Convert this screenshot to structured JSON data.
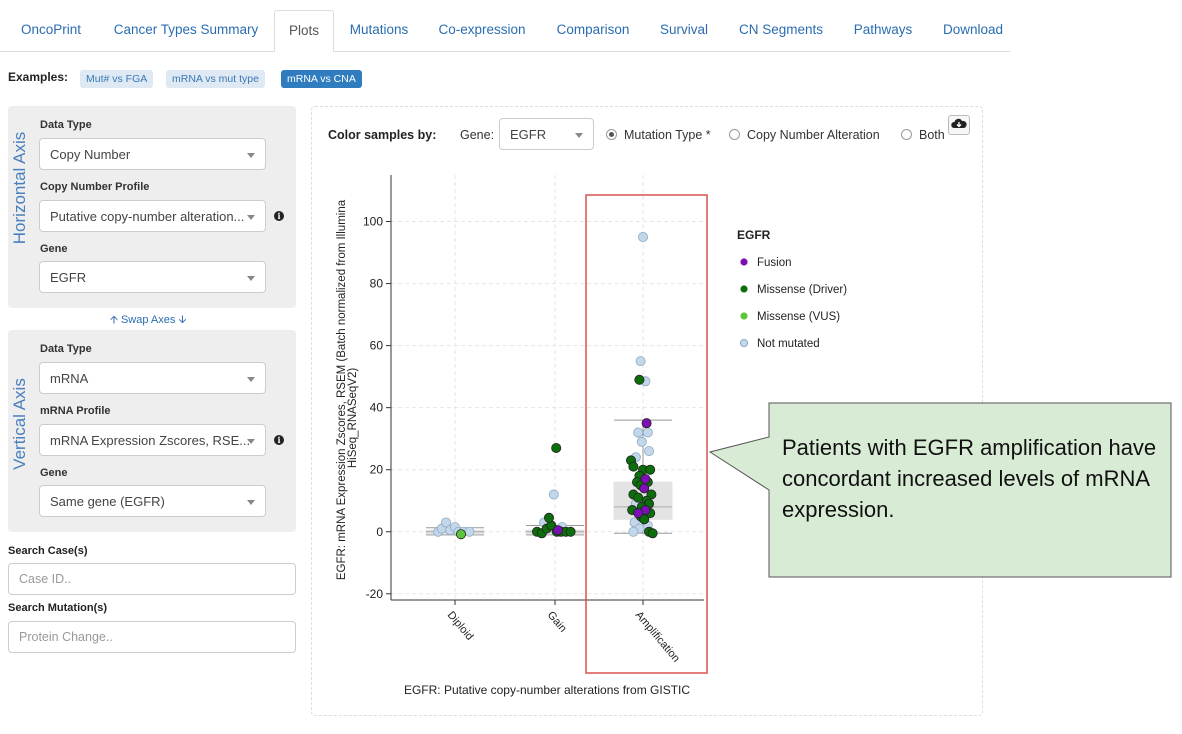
{
  "tabs": [
    {
      "label": "OncoPrint",
      "active": false
    },
    {
      "label": "Cancer Types Summary",
      "active": false
    },
    {
      "label": "Plots",
      "active": true
    },
    {
      "label": "Mutations",
      "active": false
    },
    {
      "label": "Co-expression",
      "active": false
    },
    {
      "label": "Comparison",
      "active": false
    },
    {
      "label": "Survival",
      "active": false
    },
    {
      "label": "CN Segments",
      "active": false
    },
    {
      "label": "Pathways",
      "active": false
    },
    {
      "label": "Download",
      "active": false
    }
  ],
  "examples": {
    "label": "Examples:",
    "items": [
      {
        "label": "Mut# vs FGA",
        "selected": false
      },
      {
        "label": "mRNA vs mut type",
        "selected": false
      },
      {
        "label": "mRNA vs CNA",
        "selected": true
      }
    ]
  },
  "horizontal": {
    "axis_label": "Horizontal Axis",
    "data_type_label": "Data Type",
    "data_type_value": "Copy Number",
    "profile_label": "Copy Number Profile",
    "profile_value": "Putative copy-number alteration...",
    "gene_label": "Gene",
    "gene_value": "EGFR"
  },
  "swap_axes": "Swap Axes",
  "vertical": {
    "axis_label": "Vertical Axis",
    "data_type_label": "Data Type",
    "data_type_value": "mRNA",
    "profile_label": "mRNA Profile",
    "profile_value": "mRNA Expression Zscores, RSE...",
    "gene_label": "Gene",
    "gene_value": "Same gene (EGFR)"
  },
  "search_case": {
    "label": "Search Case(s)",
    "placeholder": "Case ID.."
  },
  "search_mutation": {
    "label": "Search Mutation(s)",
    "placeholder": "Protein Change.."
  },
  "plot_controls": {
    "color_by_label": "Color samples by:",
    "gene_label": "Gene:",
    "gene_value": "EGFR",
    "options": [
      {
        "label": "Mutation Type *",
        "checked": true
      },
      {
        "label": "Copy Number Alteration",
        "checked": false
      },
      {
        "label": "Both",
        "checked": false
      }
    ]
  },
  "colors": {
    "fusion": "#7b0fb3",
    "missense_driver": "#0b6e0b",
    "missense_vus": "#5ec43a",
    "not_mutated": "#c2d8ea",
    "callout_fill": "#d8ebd4",
    "highlight_box": "#d9534f"
  },
  "callout_text": "Patients with EGFR amplification have concordant increased levels of mRNA expression.",
  "chart_data": {
    "type": "scatter",
    "xlabel": "EGFR: Putative copy-number alterations from GISTIC",
    "ylabel": "EGFR: mRNA Expression Zscores, RSEM (Batch normalized from Illumina HiSeq_RNASeqV2)",
    "categories": [
      "Diploid",
      "Gain",
      "Amplification"
    ],
    "ylim": [
      -22,
      115
    ],
    "yticks": [
      -20,
      0,
      20,
      40,
      60,
      80,
      100
    ],
    "grid": true,
    "legend": {
      "title": "EGFR",
      "placement": "right",
      "entries": [
        "Fusion",
        "Missense (Driver)",
        "Missense (VUS)",
        "Not mutated"
      ]
    },
    "boxes": [
      {
        "category": "Diploid",
        "min": -1,
        "q1": -0.5,
        "median": 0,
        "q3": 0.5,
        "max": 1.3
      },
      {
        "category": "Gain",
        "min": -1,
        "q1": -0.5,
        "median": 0,
        "q3": 0.5,
        "max": 2
      },
      {
        "category": "Amplification",
        "min": -0.5,
        "q1": 4,
        "median": 8,
        "q3": 16,
        "max": 36
      }
    ],
    "points": [
      {
        "cat": 0,
        "jitter": -0.28,
        "y": 0,
        "type": "not_mutated"
      },
      {
        "cat": 0,
        "jitter": -0.22,
        "y": 1,
        "type": "not_mutated"
      },
      {
        "cat": 0,
        "jitter": -0.15,
        "y": 3,
        "type": "not_mutated"
      },
      {
        "cat": 0,
        "jitter": -0.08,
        "y": 0.5,
        "type": "not_mutated"
      },
      {
        "cat": 0,
        "jitter": 0.0,
        "y": 1.5,
        "type": "not_mutated"
      },
      {
        "cat": 0,
        "jitter": 0.06,
        "y": 0,
        "type": "not_mutated"
      },
      {
        "cat": 0,
        "jitter": 0.14,
        "y": 0,
        "type": "not_mutated"
      },
      {
        "cat": 0,
        "jitter": 0.24,
        "y": 0,
        "type": "not_mutated"
      },
      {
        "cat": 0,
        "jitter": 0.1,
        "y": -0.8,
        "type": "missense_vus"
      },
      {
        "cat": 1,
        "jitter": -0.3,
        "y": 0,
        "type": "missense_driver"
      },
      {
        "cat": 1,
        "jitter": -0.22,
        "y": -0.5,
        "type": "missense_driver"
      },
      {
        "cat": 1,
        "jitter": -0.14,
        "y": 1,
        "type": "missense_driver"
      },
      {
        "cat": 1,
        "jitter": -0.06,
        "y": 2,
        "type": "missense_driver"
      },
      {
        "cat": 1,
        "jitter": 0.03,
        "y": 0,
        "type": "missense_driver"
      },
      {
        "cat": 1,
        "jitter": 0.1,
        "y": 0,
        "type": "missense_driver"
      },
      {
        "cat": 1,
        "jitter": 0.18,
        "y": 0,
        "type": "missense_driver"
      },
      {
        "cat": 1,
        "jitter": 0.26,
        "y": 0,
        "type": "missense_driver"
      },
      {
        "cat": 1,
        "jitter": -0.1,
        "y": 4.5,
        "type": "missense_driver"
      },
      {
        "cat": 1,
        "jitter": 0.02,
        "y": 27,
        "type": "missense_driver"
      },
      {
        "cat": 1,
        "jitter": -0.02,
        "y": 12,
        "type": "not_mutated"
      },
      {
        "cat": 1,
        "jitter": -0.18,
        "y": 3,
        "type": "not_mutated"
      },
      {
        "cat": 1,
        "jitter": 0.12,
        "y": 1.5,
        "type": "not_mutated"
      },
      {
        "cat": 1,
        "jitter": 0.05,
        "y": 0.5,
        "type": "fusion"
      },
      {
        "cat": 2,
        "jitter": 0.0,
        "y": 95,
        "type": "not_mutated"
      },
      {
        "cat": 2,
        "jitter": -0.04,
        "y": 55,
        "type": "not_mutated"
      },
      {
        "cat": 2,
        "jitter": 0.04,
        "y": 48.5,
        "type": "not_mutated"
      },
      {
        "cat": 2,
        "jitter": -0.06,
        "y": 49,
        "type": "missense_driver"
      },
      {
        "cat": 2,
        "jitter": 0.06,
        "y": 35,
        "type": "fusion"
      },
      {
        "cat": 2,
        "jitter": -0.08,
        "y": 32,
        "type": "not_mutated"
      },
      {
        "cat": 2,
        "jitter": 0.08,
        "y": 32,
        "type": "not_mutated"
      },
      {
        "cat": 2,
        "jitter": -0.02,
        "y": 29,
        "type": "not_mutated"
      },
      {
        "cat": 2,
        "jitter": 0.1,
        "y": 26,
        "type": "not_mutated"
      },
      {
        "cat": 2,
        "jitter": -0.12,
        "y": 24,
        "type": "not_mutated"
      },
      {
        "cat": 2,
        "jitter": -0.2,
        "y": 23,
        "type": "missense_driver"
      },
      {
        "cat": 2,
        "jitter": -0.16,
        "y": 21,
        "type": "missense_driver"
      },
      {
        "cat": 2,
        "jitter": 0.0,
        "y": 20,
        "type": "missense_driver"
      },
      {
        "cat": 2,
        "jitter": 0.12,
        "y": 20,
        "type": "missense_driver"
      },
      {
        "cat": 2,
        "jitter": -0.06,
        "y": 18,
        "type": "missense_driver"
      },
      {
        "cat": 2,
        "jitter": 0.04,
        "y": 17,
        "type": "fusion"
      },
      {
        "cat": 2,
        "jitter": -0.1,
        "y": 16,
        "type": "missense_driver"
      },
      {
        "cat": 2,
        "jitter": 0.08,
        "y": 16,
        "type": "missense_driver"
      },
      {
        "cat": 2,
        "jitter": -0.04,
        "y": 15,
        "type": "missense_driver"
      },
      {
        "cat": 2,
        "jitter": 0.02,
        "y": 14,
        "type": "fusion"
      },
      {
        "cat": 2,
        "jitter": -0.16,
        "y": 12,
        "type": "missense_driver"
      },
      {
        "cat": 2,
        "jitter": 0.14,
        "y": 12,
        "type": "missense_driver"
      },
      {
        "cat": 2,
        "jitter": -0.08,
        "y": 11,
        "type": "missense_driver"
      },
      {
        "cat": 2,
        "jitter": 0.06,
        "y": 10,
        "type": "missense_driver"
      },
      {
        "cat": 2,
        "jitter": -0.12,
        "y": 9,
        "type": "not_mutated"
      },
      {
        "cat": 2,
        "jitter": 0.1,
        "y": 9,
        "type": "missense_driver"
      },
      {
        "cat": 2,
        "jitter": -0.02,
        "y": 8,
        "type": "missense_driver"
      },
      {
        "cat": 2,
        "jitter": -0.18,
        "y": 7,
        "type": "missense_driver"
      },
      {
        "cat": 2,
        "jitter": 0.04,
        "y": 7,
        "type": "fusion"
      },
      {
        "cat": 2,
        "jitter": -0.08,
        "y": 6,
        "type": "fusion"
      },
      {
        "cat": 2,
        "jitter": 0.12,
        "y": 6,
        "type": "missense_driver"
      },
      {
        "cat": 2,
        "jitter": -0.04,
        "y": 5,
        "type": "missense_driver"
      },
      {
        "cat": 2,
        "jitter": 0.02,
        "y": 4,
        "type": "missense_driver"
      },
      {
        "cat": 2,
        "jitter": -0.14,
        "y": 3,
        "type": "not_mutated"
      },
      {
        "cat": 2,
        "jitter": 0.08,
        "y": 2,
        "type": "not_mutated"
      },
      {
        "cat": 2,
        "jitter": -0.06,
        "y": 1,
        "type": "not_mutated"
      },
      {
        "cat": 2,
        "jitter": -0.16,
        "y": 0,
        "type": "not_mutated"
      },
      {
        "cat": 2,
        "jitter": 0.1,
        "y": 0,
        "type": "missense_driver"
      },
      {
        "cat": 2,
        "jitter": 0.16,
        "y": -0.5,
        "type": "missense_driver"
      }
    ]
  }
}
